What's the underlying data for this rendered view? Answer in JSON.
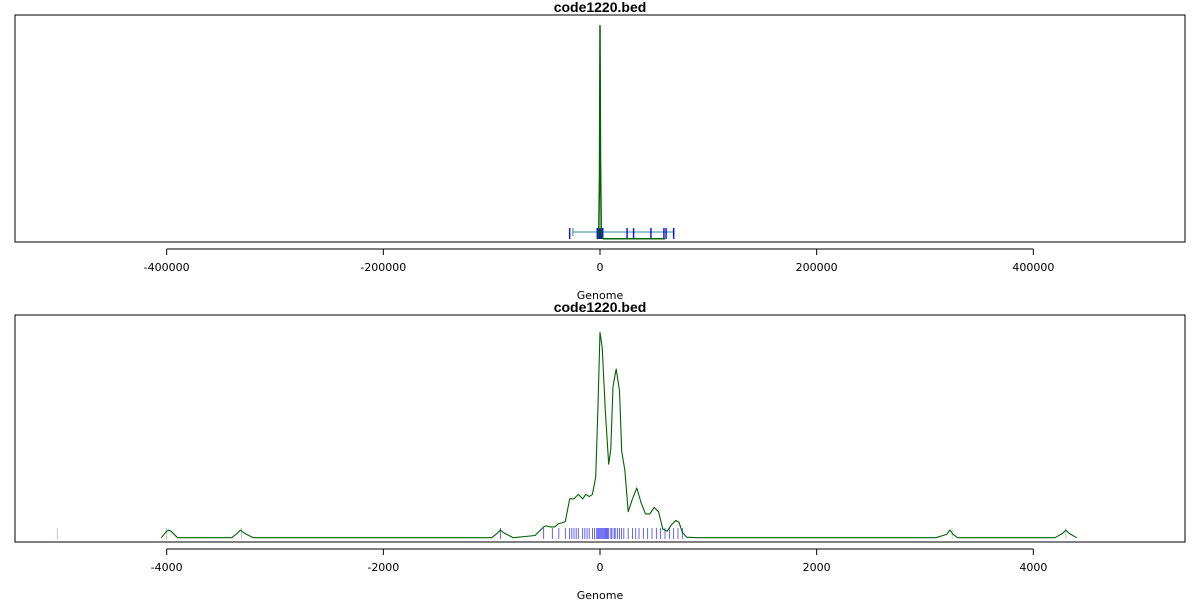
{
  "chart_data": [
    {
      "type": "line",
      "title": "code1220.bed",
      "xlabel": "Genome",
      "ylabel": "",
      "xlim": [
        -540000,
        540000
      ],
      "ylim": [
        0,
        1.05
      ],
      "x_ticks": [
        -400000,
        -200000,
        0,
        200000,
        400000
      ],
      "x_tick_labels": [
        "-400000",
        "-200000",
        "0",
        "200000",
        "400000"
      ],
      "series": [
        {
          "color": "#006400",
          "x": [
            -3000,
            -1200,
            -500,
            0,
            500,
            1200,
            3000,
            60000
          ],
          "y": [
            0.015,
            0.02,
            0.3,
            1.0,
            0.4,
            0.03,
            0.015,
            0.015
          ]
        }
      ],
      "rug_x": [
        -28000,
        -2500,
        -1500,
        -800,
        -400,
        0,
        300,
        700,
        1500,
        2500,
        25000,
        31000,
        47000,
        59000,
        61000,
        68000
      ],
      "range_bar": [
        -25000,
        68000
      ]
    },
    {
      "type": "line",
      "title": "code1220.bed",
      "xlabel": "Genome",
      "ylabel": "",
      "xlim": [
        -5400,
        5400
      ],
      "ylim": [
        0,
        1.05
      ],
      "x_ticks": [
        -4000,
        -2000,
        0,
        2000,
        4000
      ],
      "x_tick_labels": [
        "-4000",
        "-2000",
        "0",
        "2000",
        "4000"
      ],
      "series": [
        {
          "color": "#006400",
          "x": [
            -4050,
            -4000,
            -3980,
            -3960,
            -3900,
            -3400,
            -3350,
            -3320,
            -3280,
            -3200,
            -1000,
            -950,
            -920,
            -880,
            -800,
            -600,
            -520,
            -500,
            -460,
            -420,
            -380,
            -340,
            -320,
            -280,
            -240,
            -200,
            -160,
            -130,
            -100,
            -70,
            -40,
            -20,
            0,
            20,
            50,
            80,
            100,
            120,
            150,
            180,
            200,
            230,
            260,
            300,
            340,
            380,
            420,
            460,
            500,
            540,
            580,
            620,
            660,
            700,
            730,
            760,
            800,
            900,
            3100,
            3200,
            3230,
            3260,
            3300,
            4200,
            4270,
            4300,
            4330,
            4400
          ],
          "y": [
            0.02,
            0.05,
            0.055,
            0.05,
            0.02,
            0.02,
            0.04,
            0.055,
            0.04,
            0.02,
            0.02,
            0.04,
            0.055,
            0.04,
            0.02,
            0.03,
            0.07,
            0.075,
            0.07,
            0.07,
            0.085,
            0.09,
            0.095,
            0.2,
            0.2,
            0.22,
            0.2,
            0.22,
            0.21,
            0.22,
            0.3,
            0.6,
            0.97,
            0.9,
            0.6,
            0.36,
            0.43,
            0.72,
            0.8,
            0.7,
            0.42,
            0.33,
            0.14,
            0.2,
            0.25,
            0.18,
            0.13,
            0.13,
            0.16,
            0.14,
            0.06,
            0.05,
            0.08,
            0.1,
            0.09,
            0.045,
            0.022,
            0.02,
            0.02,
            0.035,
            0.055,
            0.035,
            0.02,
            0.02,
            0.04,
            0.055,
            0.04,
            0.02
          ]
        }
      ],
      "rug_x": [
        -5010,
        -4000,
        -3310,
        -920,
        -520,
        -440,
        -380,
        -320,
        -280,
        -260,
        -240,
        -220,
        -200,
        -160,
        -140,
        -120,
        -100,
        -70,
        -50,
        -30,
        -20,
        -10,
        0,
        10,
        20,
        30,
        40,
        50,
        60,
        70,
        80,
        100,
        110,
        130,
        140,
        160,
        180,
        200,
        220,
        260,
        300,
        330,
        360,
        400,
        440,
        480,
        520,
        560,
        600,
        640,
        680,
        720,
        760,
        3250,
        4300
      ]
    }
  ]
}
